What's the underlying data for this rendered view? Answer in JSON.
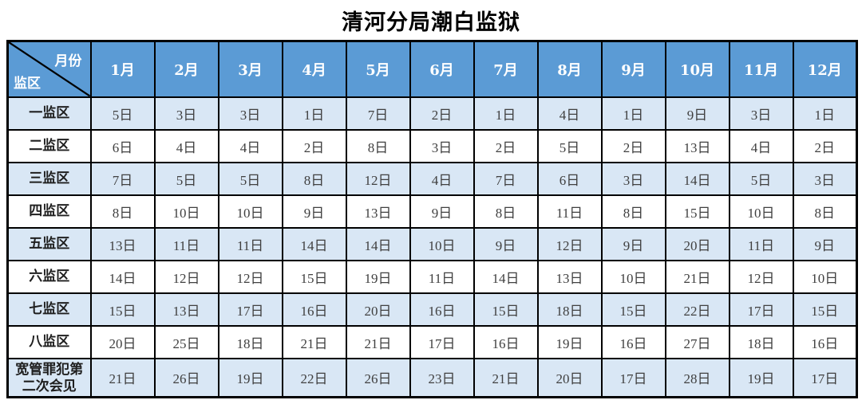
{
  "title": "清河分局潮白监狱",
  "colors": {
    "header_bg": "#5b9bd5",
    "header_text": "#ffffff",
    "row_alt_bg": "#d9e7f5",
    "row_bg": "#ffffff",
    "border": "#000000",
    "data_text": "#404040"
  },
  "table": {
    "corner": {
      "top_right": "月份",
      "bottom_left": "监区"
    },
    "months": [
      "1月",
      "2月",
      "3月",
      "4月",
      "5月",
      "6月",
      "7月",
      "8月",
      "9月",
      "10月",
      "11月",
      "12月"
    ],
    "rows": [
      {
        "label": "一监区",
        "values": [
          "5日",
          "3日",
          "3日",
          "1日",
          "7日",
          "2日",
          "1日",
          "4日",
          "1日",
          "9日",
          "3日",
          "1日"
        ]
      },
      {
        "label": "二监区",
        "values": [
          "6日",
          "4日",
          "4日",
          "2日",
          "8日",
          "3日",
          "2日",
          "5日",
          "2日",
          "13日",
          "4日",
          "2日"
        ]
      },
      {
        "label": "三监区",
        "values": [
          "7日",
          "5日",
          "5日",
          "8日",
          "12日",
          "4日",
          "7日",
          "6日",
          "3日",
          "14日",
          "5日",
          "3日"
        ]
      },
      {
        "label": "四监区",
        "values": [
          "8日",
          "10日",
          "10日",
          "9日",
          "13日",
          "9日",
          "8日",
          "11日",
          "8日",
          "15日",
          "10日",
          "8日"
        ]
      },
      {
        "label": "五监区",
        "values": [
          "13日",
          "11日",
          "11日",
          "14日",
          "14日",
          "10日",
          "9日",
          "12日",
          "9日",
          "20日",
          "11日",
          "9日"
        ]
      },
      {
        "label": "六监区",
        "values": [
          "14日",
          "12日",
          "12日",
          "15日",
          "19日",
          "11日",
          "14日",
          "13日",
          "10日",
          "21日",
          "12日",
          "10日"
        ]
      },
      {
        "label": "七监区",
        "values": [
          "15日",
          "13日",
          "17日",
          "16日",
          "20日",
          "16日",
          "15日",
          "18日",
          "15日",
          "22日",
          "17日",
          "15日"
        ]
      },
      {
        "label": "八监区",
        "values": [
          "20日",
          "25日",
          "18日",
          "21日",
          "21日",
          "17日",
          "16日",
          "19日",
          "16日",
          "27日",
          "18日",
          "16日"
        ]
      },
      {
        "label": "宽管罪犯第二次会见",
        "values": [
          "21日",
          "26日",
          "19日",
          "22日",
          "26日",
          "23日",
          "21日",
          "20日",
          "17日",
          "28日",
          "19日",
          "17日"
        ]
      }
    ]
  }
}
